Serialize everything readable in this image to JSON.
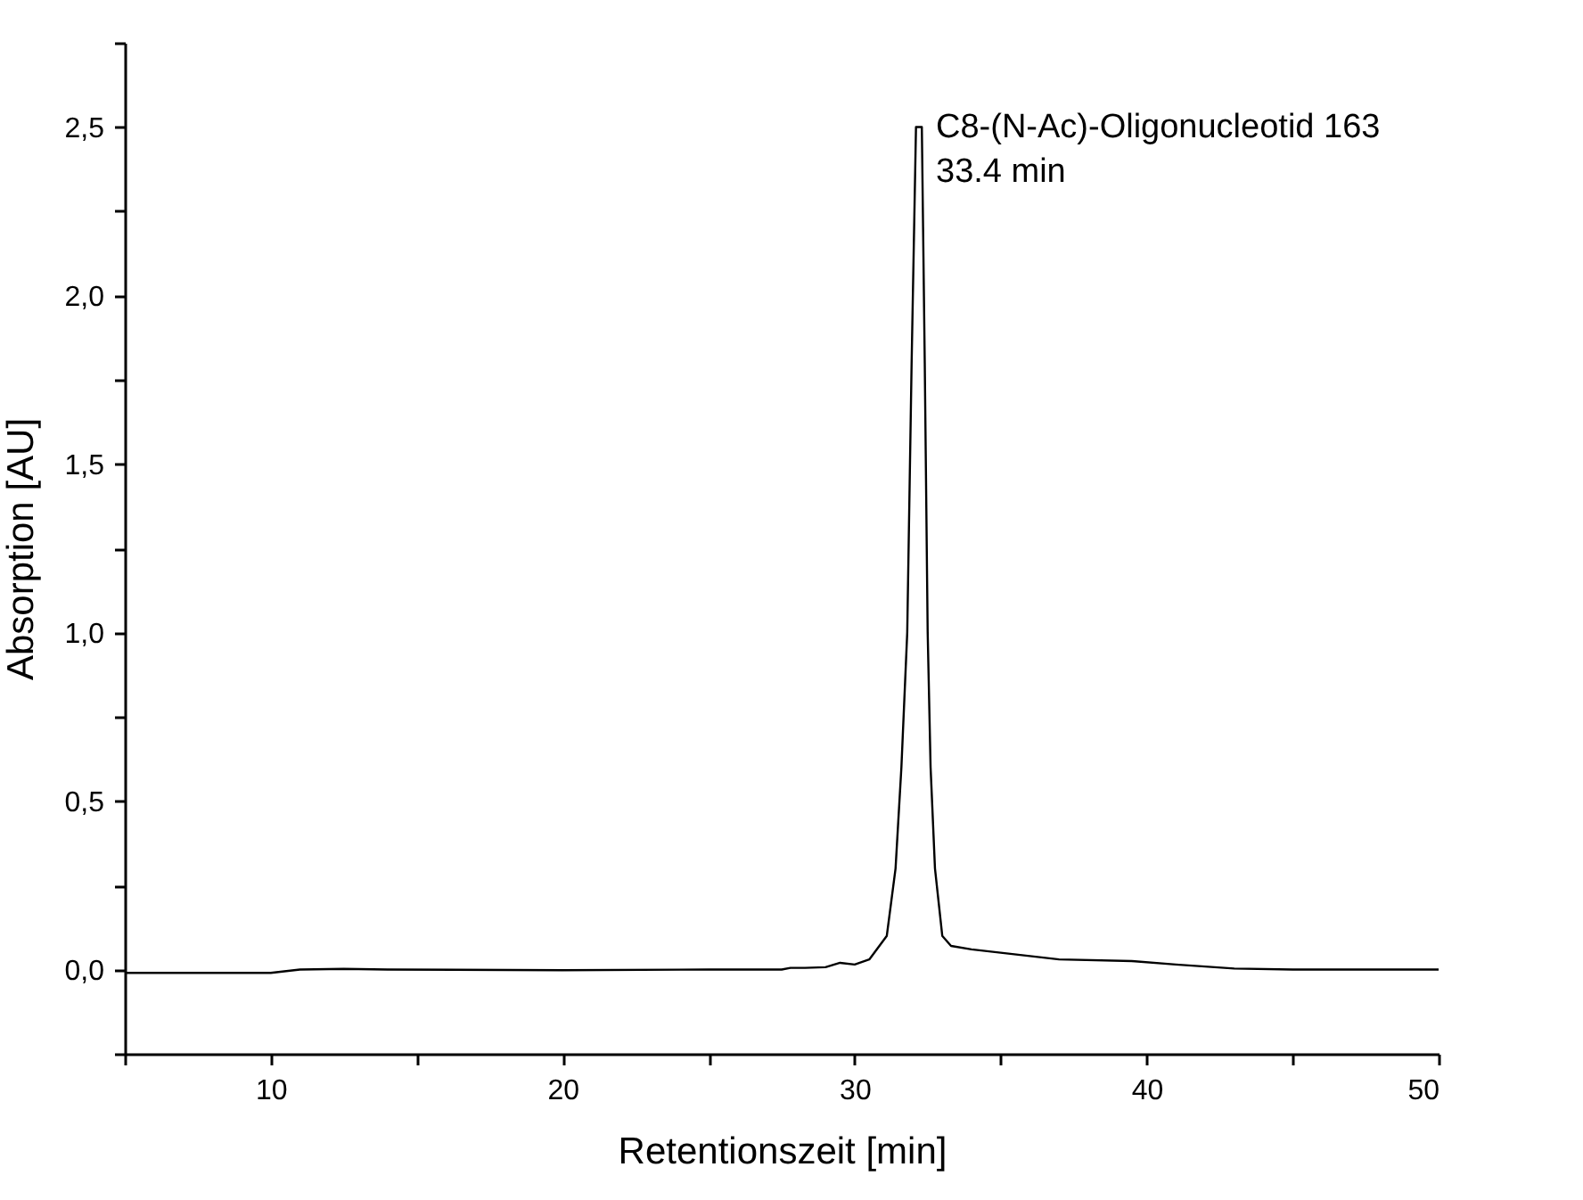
{
  "chart_data": {
    "type": "line",
    "xlabel": "Retentionszeit [min]",
    "ylabel": "Absorption [AU]",
    "x": [
      5,
      10,
      11,
      12.5,
      14,
      20,
      25,
      27.5,
      27.8,
      28.3,
      29,
      29.5,
      30,
      30.5,
      31.1,
      31.4,
      31.6,
      31.8,
      31.95,
      32.1,
      32.3,
      32.4,
      32.5,
      32.6,
      32.75,
      33.0,
      33.3,
      34,
      35,
      37,
      39.5,
      41,
      43,
      45,
      50
    ],
    "series": [
      {
        "color": "#000000",
        "values": [
          -0.01,
          -0.01,
          0.0,
          0.002,
          0.0,
          -0.002,
          0.0,
          0.0,
          0.005,
          0.005,
          0.007,
          0.02,
          0.015,
          0.03,
          0.1,
          0.3,
          0.6,
          1.0,
          1.8,
          2.5,
          2.5,
          1.8,
          1.0,
          0.6,
          0.3,
          0.1,
          0.07,
          0.06,
          0.05,
          0.03,
          0.025,
          0.015,
          0.003,
          0.0,
          0.0
        ]
      }
    ],
    "xlim": [
      5,
      50
    ],
    "xticks": [
      {
        "value": 5,
        "label": null
      },
      10,
      {
        "value": 15,
        "label": null
      },
      20,
      {
        "value": 25,
        "label": null
      },
      30,
      {
        "value": 35,
        "label": null
      },
      40,
      {
        "value": 45,
        "label": null
      },
      50
    ],
    "ylim": [
      -0.25,
      2.75
    ],
    "yticks": [
      {
        "value": -0.25,
        "label": null
      },
      {
        "value": 0,
        "label": "0,0"
      },
      {
        "value": 0.25,
        "label": null
      },
      {
        "value": 0.5,
        "label": "0,5"
      },
      {
        "value": 0.75,
        "label": null
      },
      {
        "value": 1.0,
        "label": "1,0"
      },
      {
        "value": 1.25,
        "label": null
      },
      {
        "value": 1.5,
        "label": "1,5"
      },
      {
        "value": 1.75,
        "label": null
      },
      {
        "value": 2.0,
        "label": "2,0"
      },
      {
        "value": 2.25,
        "label": null
      },
      {
        "value": 2.5,
        "label": "2,5"
      },
      {
        "value": 2.75,
        "label": null
      }
    ],
    "annotations": [
      "C8-(N-Ac)-Oligonucleotid 163",
      "33.4 min"
    ],
    "grid": false,
    "marker": "none",
    "line_style": "solid"
  }
}
